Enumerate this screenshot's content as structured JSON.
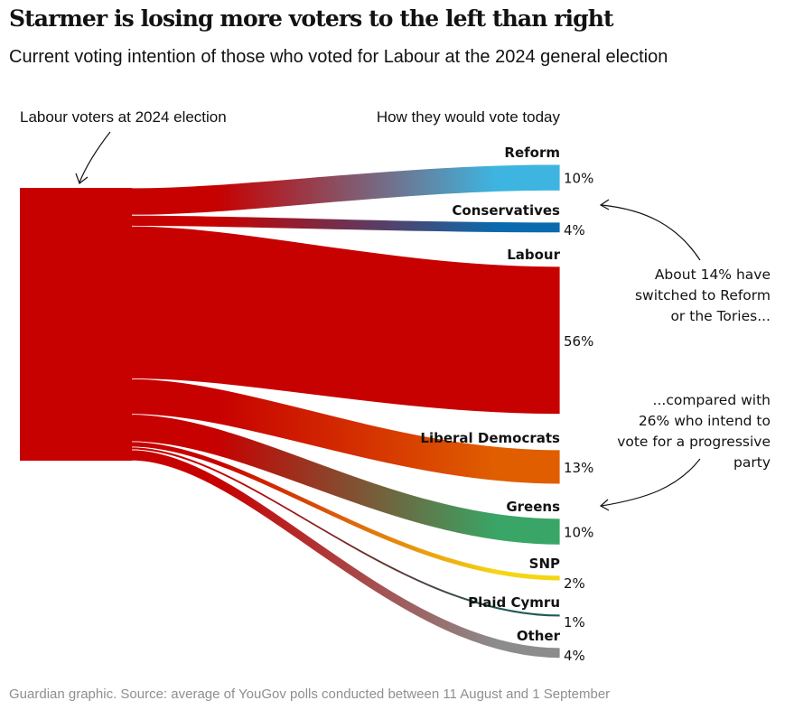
{
  "header": {
    "title": "Starmer is losing more voters to the left than right",
    "subtitle": "Current voting intention of those who voted for Labour at the 2024 general election"
  },
  "labels": {
    "source_label": "Labour voters at 2024 election",
    "target_label": "How they would vote today"
  },
  "footer": {
    "source": "Guardian graphic. Source: average of YouGov polls conducted between 11 August and 1 September"
  },
  "chart_data": {
    "type": "sankey",
    "title": "Starmer is losing more voters to the left than right",
    "subtitle": "Current voting intention of those who voted for Labour at the 2024 general election",
    "source_node": {
      "name": "Labour voters at 2024 election",
      "color": "#c70000"
    },
    "unit": "%",
    "targets": [
      {
        "name": "Reform",
        "value": 10,
        "label": "10%",
        "color": "#3db5e0"
      },
      {
        "name": "Conservatives",
        "value": 4,
        "label": "4%",
        "color": "#0a6aad"
      },
      {
        "name": "Labour",
        "value": 56,
        "label": "56%",
        "color": "#c70000"
      },
      {
        "name": "Liberal Democrats",
        "value": 13,
        "label": "13%",
        "color": "#e05e00"
      },
      {
        "name": "Greens",
        "value": 10,
        "label": "10%",
        "color": "#39a566"
      },
      {
        "name": "SNP",
        "value": 2,
        "label": "2%",
        "color": "#f5d514"
      },
      {
        "name": "Plaid Cymru",
        "value": 1,
        "label": "1%",
        "color": "#1f5a55"
      },
      {
        "name": "Other",
        "value": 4,
        "label": "4%",
        "color": "#8c8c8c"
      }
    ],
    "annotations": [
      {
        "lines": [
          "About 14% have",
          "switched to Reform",
          "or the Tories..."
        ],
        "points_to": "Conservatives"
      },
      {
        "lines": [
          "...compared with",
          "26% who intend to",
          "vote for a progressive",
          "party"
        ],
        "points_to": "Greens"
      }
    ]
  }
}
